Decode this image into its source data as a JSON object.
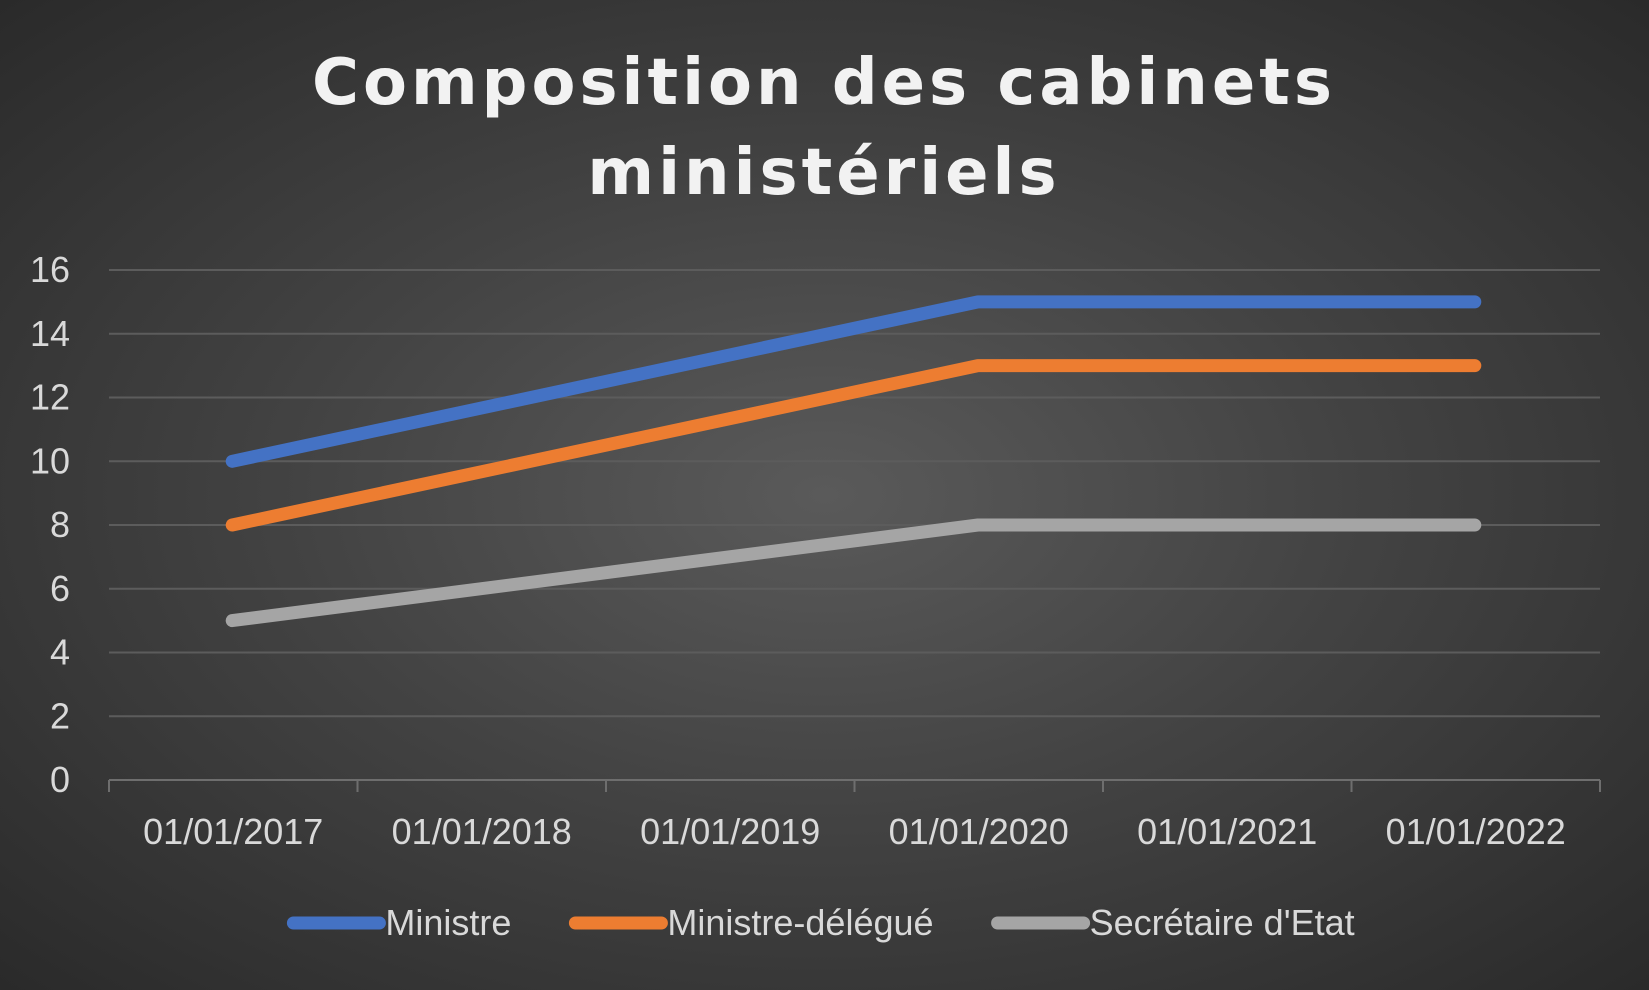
{
  "chart_data": {
    "type": "line",
    "title_lines": [
      "Composition des cabinets",
      "ministériels"
    ],
    "categories": [
      "01/01/2017",
      "01/01/2018",
      "01/01/2019",
      "01/01/2020",
      "01/01/2021",
      "01/01/2022"
    ],
    "y_ticks": [
      "0",
      "2",
      "4",
      "6",
      "8",
      "10",
      "12",
      "14",
      "16"
    ],
    "ylim": [
      0,
      16
    ],
    "xlabel": "",
    "ylabel": "",
    "grid": true,
    "legend_position": "bottom",
    "series": [
      {
        "name": "Ministre",
        "color": "#4472c4",
        "points": [
          {
            "x": "2017-07-01",
            "y": 10
          },
          {
            "x": "2020-07-01",
            "y": 15
          },
          {
            "x": "2022-07-01",
            "y": 15
          }
        ]
      },
      {
        "name": "Ministre-délégué",
        "color": "#ed7d31",
        "points": [
          {
            "x": "2017-07-01",
            "y": 8
          },
          {
            "x": "2020-07-01",
            "y": 13
          },
          {
            "x": "2022-07-01",
            "y": 13
          }
        ]
      },
      {
        "name": "Secrétaire d'Etat",
        "color": "#a5a5a5",
        "points": [
          {
            "x": "2017-07-01",
            "y": 5
          },
          {
            "x": "2020-07-01",
            "y": 8
          },
          {
            "x": "2022-07-01",
            "y": 8
          }
        ]
      }
    ]
  }
}
